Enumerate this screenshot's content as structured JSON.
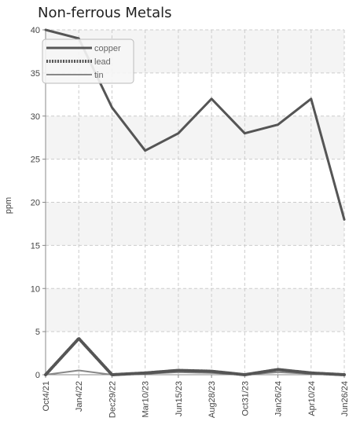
{
  "chart_data": {
    "type": "line",
    "title": "Non-ferrous Metals",
    "xlabel": "",
    "ylabel": "ppm",
    "categories": [
      "Oct4/21",
      "Jan4/22",
      "Dec29/22",
      "Mar10/23",
      "Jun15/23",
      "Aug28/23",
      "Oct31/23",
      "Jan26/24",
      "Apr10/24",
      "Jun26/24"
    ],
    "ylim": [
      0,
      40
    ],
    "yticks": [
      0,
      5,
      10,
      15,
      20,
      25,
      30,
      35,
      40
    ],
    "grid": true,
    "legend_position": "top-left",
    "series": [
      {
        "name": "copper",
        "color": "#555555",
        "style": "solid",
        "values": [
          40,
          39,
          31,
          26,
          28,
          32,
          28,
          29,
          32,
          18
        ]
      },
      {
        "name": "lead",
        "color": "#555555",
        "style": "dotted",
        "values": [
          0,
          4.2,
          0,
          0.2,
          0.5,
          0.4,
          0,
          0.6,
          0.2,
          0
        ]
      },
      {
        "name": "tin",
        "color": "#888888",
        "style": "thin",
        "values": [
          0,
          0.5,
          0,
          0.1,
          0.3,
          0.2,
          0,
          0.3,
          0.1,
          0
        ]
      }
    ]
  }
}
